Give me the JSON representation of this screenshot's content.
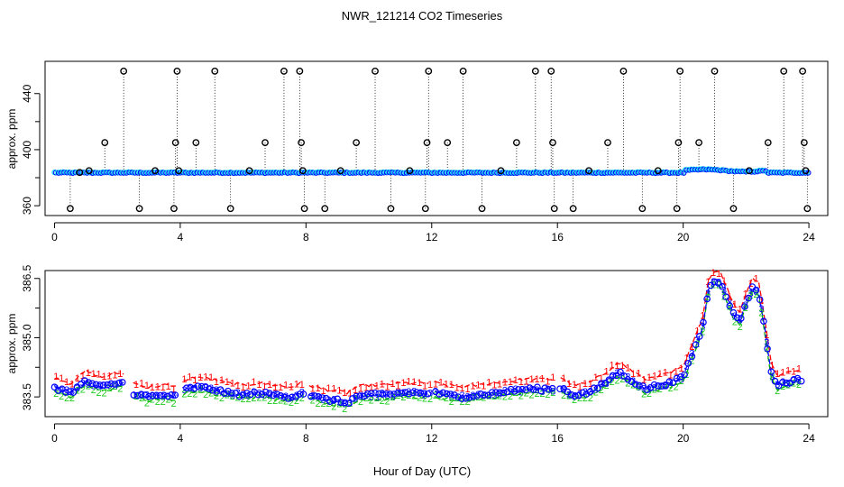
{
  "title": "NWR_121214  CO2 Timeseries",
  "xlabel": "Hour of Day (UTC)",
  "colors": {
    "black": "#000000",
    "blue": "#0000ff",
    "cyan": "#00e5ee",
    "red": "#ff0000",
    "green": "#22cc22",
    "dash_line": "#0000ff",
    "dash_line_red": "#ff0000",
    "dash_line_green": "#00aa00"
  },
  "chart_data": [
    {
      "type": "scatter",
      "name": "top-panel",
      "ylabel": "approx. ppm",
      "xlim": [
        -0.3,
        24.6
      ],
      "ylim": [
        353,
        463
      ],
      "x_ticks": [
        0,
        4,
        8,
        12,
        16,
        20,
        24
      ],
      "y_ticks": [
        360,
        400,
        440
      ],
      "baseline_ppm": 383.7,
      "spikes": [
        {
          "x": 0.5,
          "y": 358
        },
        {
          "x": 0.8,
          "y": 383.7
        },
        {
          "x": 1.1,
          "y": 385
        },
        {
          "x": 1.6,
          "y": 405
        },
        {
          "x": 2.2,
          "y": 456
        },
        {
          "x": 2.7,
          "y": 358
        },
        {
          "x": 3.2,
          "y": 385
        },
        {
          "x": 3.8,
          "y": 358
        },
        {
          "x": 3.85,
          "y": 405
        },
        {
          "x": 3.9,
          "y": 456
        },
        {
          "x": 3.95,
          "y": 385
        },
        {
          "x": 4.5,
          "y": 405
        },
        {
          "x": 5.1,
          "y": 456
        },
        {
          "x": 5.6,
          "y": 358
        },
        {
          "x": 6.2,
          "y": 385
        },
        {
          "x": 6.7,
          "y": 405
        },
        {
          "x": 7.3,
          "y": 456
        },
        {
          "x": 7.8,
          "y": 456
        },
        {
          "x": 7.85,
          "y": 405
        },
        {
          "x": 7.9,
          "y": 385
        },
        {
          "x": 7.95,
          "y": 358
        },
        {
          "x": 8.6,
          "y": 358
        },
        {
          "x": 9.1,
          "y": 385
        },
        {
          "x": 9.6,
          "y": 405
        },
        {
          "x": 10.2,
          "y": 456
        },
        {
          "x": 10.7,
          "y": 358
        },
        {
          "x": 11.3,
          "y": 385
        },
        {
          "x": 11.8,
          "y": 358
        },
        {
          "x": 11.85,
          "y": 405
        },
        {
          "x": 11.9,
          "y": 456
        },
        {
          "x": 12.5,
          "y": 405
        },
        {
          "x": 13.0,
          "y": 456
        },
        {
          "x": 13.6,
          "y": 358
        },
        {
          "x": 14.2,
          "y": 385
        },
        {
          "x": 14.7,
          "y": 405
        },
        {
          "x": 15.3,
          "y": 456
        },
        {
          "x": 15.8,
          "y": 456
        },
        {
          "x": 15.85,
          "y": 405
        },
        {
          "x": 15.9,
          "y": 358
        },
        {
          "x": 16.5,
          "y": 358
        },
        {
          "x": 17.0,
          "y": 385
        },
        {
          "x": 17.6,
          "y": 405
        },
        {
          "x": 18.1,
          "y": 456
        },
        {
          "x": 18.7,
          "y": 358
        },
        {
          "x": 19.2,
          "y": 385
        },
        {
          "x": 19.8,
          "y": 358
        },
        {
          "x": 19.85,
          "y": 405
        },
        {
          "x": 19.9,
          "y": 456
        },
        {
          "x": 20.5,
          "y": 405
        },
        {
          "x": 21.0,
          "y": 456
        },
        {
          "x": 21.6,
          "y": 358
        },
        {
          "x": 22.1,
          "y": 385
        },
        {
          "x": 22.7,
          "y": 405
        },
        {
          "x": 23.2,
          "y": 456
        },
        {
          "x": 23.8,
          "y": 456
        },
        {
          "x": 23.85,
          "y": 405
        },
        {
          "x": 23.9,
          "y": 385
        },
        {
          "x": 23.95,
          "y": 358
        }
      ]
    },
    {
      "type": "line",
      "name": "bottom-panel",
      "ylabel": "approx. ppm",
      "xlim": [
        -0.3,
        24.6
      ],
      "ylim": [
        383.0,
        386.7
      ],
      "x_ticks": [
        0,
        4,
        8,
        12,
        16,
        20,
        24
      ],
      "y_ticks": [
        383.5,
        385.0,
        386.5
      ],
      "y_tick_labels": [
        "383.5",
        "385.0",
        "386.5"
      ],
      "series": [
        {
          "name": "3",
          "marker": "3",
          "color": "blue"
        },
        {
          "name": "1",
          "marker": "1",
          "color": "red",
          "offset_ppm": 0.25
        },
        {
          "name": "2",
          "marker": "2",
          "color": "green",
          "offset_ppm": -0.1
        }
      ],
      "x": [
        0.0,
        0.5,
        1.0,
        1.5,
        2.0,
        2.2,
        2.5,
        3.0,
        3.5,
        3.8,
        4.2,
        4.6,
        5.0,
        5.5,
        6.0,
        6.5,
        7.0,
        7.5,
        7.9,
        8.1,
        8.5,
        9.0,
        9.3,
        9.6,
        10.0,
        10.5,
        11.0,
        11.5,
        11.9,
        12.1,
        12.5,
        13.0,
        13.5,
        14.0,
        14.5,
        15.0,
        15.5,
        15.9,
        16.1,
        16.5,
        17.0,
        17.5,
        17.8,
        18.0,
        18.4,
        18.8,
        19.2,
        19.6,
        20.0,
        20.3,
        20.6,
        20.8,
        21.0,
        21.2,
        21.4,
        21.6,
        21.8,
        22.0,
        22.2,
        22.4,
        22.6,
        22.8,
        23.0,
        23.4,
        23.8
      ],
      "y": [
        383.75,
        383.6,
        383.9,
        383.75,
        383.85,
        383.85,
        383.6,
        383.5,
        383.55,
        383.5,
        383.7,
        383.75,
        383.7,
        383.6,
        383.55,
        383.6,
        383.55,
        383.5,
        383.6,
        383.55,
        383.45,
        383.4,
        383.35,
        383.5,
        383.55,
        383.55,
        383.6,
        383.6,
        383.6,
        383.6,
        383.55,
        383.5,
        383.55,
        383.6,
        383.65,
        383.7,
        383.7,
        383.7,
        383.75,
        383.55,
        383.6,
        383.85,
        384.05,
        384.1,
        383.9,
        383.7,
        383.8,
        383.85,
        384.0,
        384.6,
        385.2,
        386.2,
        386.45,
        386.4,
        386.0,
        385.6,
        385.4,
        385.9,
        386.25,
        386.2,
        385.2,
        384.1,
        383.8,
        383.9,
        383.95
      ]
    }
  ]
}
